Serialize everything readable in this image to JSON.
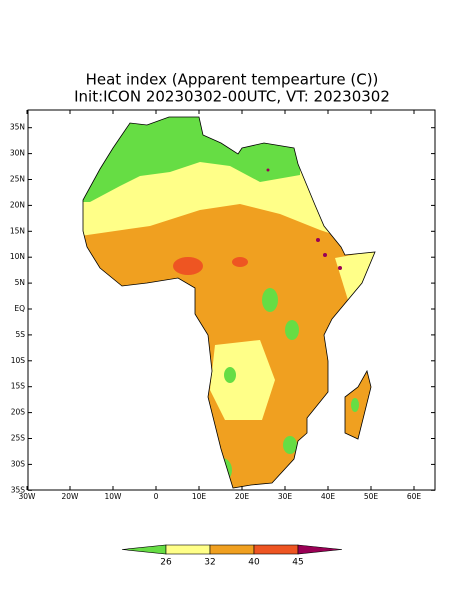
{
  "map": {
    "title": "Heat index (Apparent tempearture (C))",
    "subtitle": "Init:ICON 20230302-00UTC, VT: 20230302",
    "lat_ticks": [
      {
        "value": 35,
        "label": "35N"
      },
      {
        "value": 30,
        "label": "30N"
      },
      {
        "value": 25,
        "label": "25N"
      },
      {
        "value": 20,
        "label": "20N"
      },
      {
        "value": 15,
        "label": "15N"
      },
      {
        "value": 10,
        "label": "10N"
      },
      {
        "value": 5,
        "label": "5N"
      },
      {
        "value": 0,
        "label": "EQ"
      },
      {
        "value": -5,
        "label": "5S"
      },
      {
        "value": -10,
        "label": "10S"
      },
      {
        "value": -15,
        "label": "15S"
      },
      {
        "value": -20,
        "label": "20S"
      },
      {
        "value": -25,
        "label": "25S"
      },
      {
        "value": -30,
        "label": "30S"
      },
      {
        "value": -35,
        "label": "35S"
      }
    ],
    "lon_ticks": [
      {
        "value": -30,
        "label": "30W"
      },
      {
        "value": -20,
        "label": "20W"
      },
      {
        "value": -10,
        "label": "10W"
      },
      {
        "value": 0,
        "label": "0"
      },
      {
        "value": 10,
        "label": "10E"
      },
      {
        "value": 20,
        "label": "20E"
      },
      {
        "value": 30,
        "label": "30E"
      },
      {
        "value": 40,
        "label": "40E"
      },
      {
        "value": 50,
        "label": "50E"
      },
      {
        "value": 60,
        "label": "60E"
      }
    ],
    "colorbar": {
      "levels": [
        26,
        32,
        40,
        45
      ],
      "colors": [
        "#66dd44",
        "#ffff88",
        "#f0a020",
        "#ee5522",
        "#990055"
      ]
    }
  }
}
